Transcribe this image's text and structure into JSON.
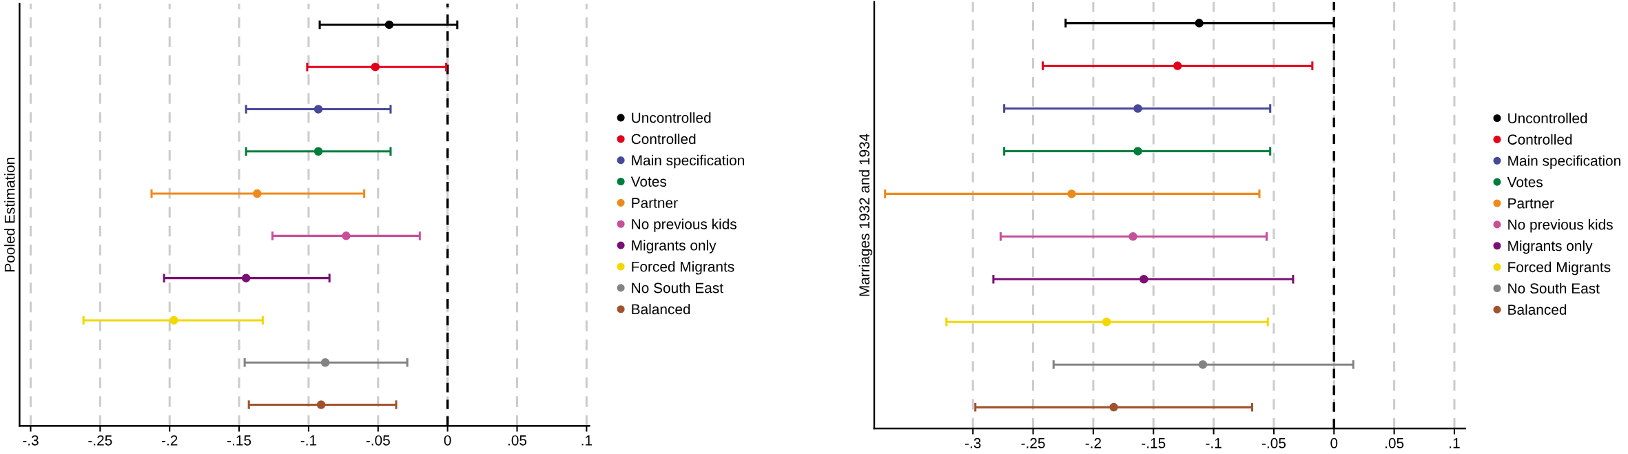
{
  "chart_data": [
    {
      "type": "scatter",
      "orientation": "horizontal",
      "ylabel": "Pooled Estimation",
      "categories": [
        null,
        null,
        null,
        null,
        null,
        null,
        null,
        null,
        null,
        null
      ],
      "xlim": [
        -0.308,
        0.102
      ],
      "xticks": [
        {
          "value": -0.3,
          "label": "-.3"
        },
        {
          "value": -0.25,
          "label": "-.25"
        },
        {
          "value": -0.2,
          "label": "-.2"
        },
        {
          "value": -0.15,
          "label": "-.15"
        },
        {
          "value": -0.1,
          "label": "-.1"
        },
        {
          "value": -0.05,
          "label": "-.05"
        },
        0,
        {
          "value": 0.05,
          "label": ".05"
        },
        {
          "value": 0.1,
          "label": ".1"
        }
      ],
      "grid": "x",
      "legend": "right",
      "marker": "circle",
      "ref_lines": [
        {
          "axis": "x",
          "value": 0,
          "color": "#000000",
          "line_style": "dashed"
        }
      ],
      "series": [
        {
          "name": "Uncontrolled",
          "color": "#000000",
          "values": [
            -0.042,
            null,
            null,
            null,
            null,
            null,
            null,
            null,
            null,
            null
          ],
          "errors": [
            [
              -0.092,
              0.007
            ],
            null,
            null,
            null,
            null,
            null,
            null,
            null,
            null,
            null
          ]
        },
        {
          "name": "Controlled",
          "color": "#e3001b",
          "values": [
            null,
            -0.052,
            null,
            null,
            null,
            null,
            null,
            null,
            null,
            null
          ],
          "errors": [
            null,
            [
              -0.101,
              -0.001
            ],
            null,
            null,
            null,
            null,
            null,
            null,
            null,
            null
          ]
        },
        {
          "name": "Main specification",
          "color": "#48479a",
          "values": [
            null,
            null,
            -0.093,
            null,
            null,
            null,
            null,
            null,
            null,
            null
          ],
          "errors": [
            null,
            null,
            [
              -0.145,
              -0.041
            ],
            null,
            null,
            null,
            null,
            null,
            null,
            null
          ]
        },
        {
          "name": "Votes",
          "color": "#007d3c",
          "values": [
            null,
            null,
            null,
            -0.093,
            null,
            null,
            null,
            null,
            null,
            null
          ],
          "errors": [
            null,
            null,
            null,
            [
              -0.145,
              -0.041
            ],
            null,
            null,
            null,
            null,
            null,
            null
          ]
        },
        {
          "name": "Partner",
          "color": "#ee8a1c",
          "values": [
            null,
            null,
            null,
            null,
            -0.137,
            null,
            null,
            null,
            null,
            null
          ],
          "errors": [
            null,
            null,
            null,
            null,
            [
              -0.213,
              -0.06
            ],
            null,
            null,
            null,
            null,
            null
          ]
        },
        {
          "name": "No previous kids",
          "color": "#c7509b",
          "values": [
            null,
            null,
            null,
            null,
            null,
            -0.073,
            null,
            null,
            null,
            null
          ],
          "errors": [
            null,
            null,
            null,
            null,
            null,
            [
              -0.126,
              -0.02
            ],
            null,
            null,
            null,
            null
          ]
        },
        {
          "name": "Migrants only",
          "color": "#7a0f74",
          "values": [
            null,
            null,
            null,
            null,
            null,
            null,
            -0.145,
            null,
            null,
            null
          ],
          "errors": [
            null,
            null,
            null,
            null,
            null,
            null,
            [
              -0.204,
              -0.085
            ],
            null,
            null,
            null
          ]
        },
        {
          "name": "Forced Migrants",
          "color": "#f2d800",
          "values": [
            null,
            null,
            null,
            null,
            null,
            null,
            null,
            -0.197,
            null,
            null
          ],
          "errors": [
            null,
            null,
            null,
            null,
            null,
            null,
            null,
            [
              -0.262,
              -0.133
            ],
            null,
            null
          ]
        },
        {
          "name": "No South East",
          "color": "#838383",
          "values": [
            null,
            null,
            null,
            null,
            null,
            null,
            null,
            null,
            -0.088,
            null
          ],
          "errors": [
            null,
            null,
            null,
            null,
            null,
            null,
            null,
            null,
            [
              -0.146,
              -0.029
            ],
            null
          ]
        },
        {
          "name": "Balanced",
          "color": "#a0522d",
          "values": [
            null,
            null,
            null,
            null,
            null,
            null,
            null,
            null,
            null,
            -0.091
          ],
          "errors": [
            null,
            null,
            null,
            null,
            null,
            null,
            null,
            null,
            null,
            [
              -0.143,
              -0.037
            ]
          ]
        }
      ]
    },
    {
      "type": "scatter",
      "orientation": "horizontal",
      "ylabel": "Marriages 1932 and 1934",
      "categories": [
        null,
        null,
        null,
        null,
        null,
        null,
        null,
        null,
        null,
        null
      ],
      "xlim": [
        -0.382,
        0.109
      ],
      "xticks": [
        {
          "value": -0.3,
          "label": "-.3"
        },
        {
          "value": -0.25,
          "label": "-.25"
        },
        {
          "value": -0.2,
          "label": "-.2"
        },
        {
          "value": -0.15,
          "label": "-.15"
        },
        {
          "value": -0.1,
          "label": "-.1"
        },
        {
          "value": -0.05,
          "label": "-.05"
        },
        0,
        {
          "value": 0.05,
          "label": ".05"
        },
        {
          "value": 0.1,
          "label": ".1"
        }
      ],
      "grid": "x",
      "legend": "right",
      "marker": "circle",
      "ref_lines": [
        {
          "axis": "x",
          "value": 0,
          "color": "#000000",
          "line_style": "dashed"
        }
      ],
      "series": [
        {
          "name": "Uncontrolled",
          "color": "#000000",
          "values": [
            -0.112,
            null,
            null,
            null,
            null,
            null,
            null,
            null,
            null,
            null
          ],
          "errors": [
            [
              -0.223,
              0.0
            ],
            null,
            null,
            null,
            null,
            null,
            null,
            null,
            null,
            null
          ]
        },
        {
          "name": "Controlled",
          "color": "#e3001b",
          "values": [
            null,
            -0.13,
            null,
            null,
            null,
            null,
            null,
            null,
            null,
            null
          ],
          "errors": [
            null,
            [
              -0.242,
              -0.018
            ],
            null,
            null,
            null,
            null,
            null,
            null,
            null,
            null
          ]
        },
        {
          "name": "Main specification",
          "color": "#48479a",
          "values": [
            null,
            null,
            -0.163,
            null,
            null,
            null,
            null,
            null,
            null,
            null
          ],
          "errors": [
            null,
            null,
            [
              -0.274,
              -0.053
            ],
            null,
            null,
            null,
            null,
            null,
            null,
            null
          ]
        },
        {
          "name": "Votes",
          "color": "#007d3c",
          "values": [
            null,
            null,
            null,
            -0.163,
            null,
            null,
            null,
            null,
            null,
            null
          ],
          "errors": [
            null,
            null,
            null,
            [
              -0.274,
              -0.053
            ],
            null,
            null,
            null,
            null,
            null,
            null
          ]
        },
        {
          "name": "Partner",
          "color": "#ee8a1c",
          "values": [
            null,
            null,
            null,
            null,
            -0.218,
            null,
            null,
            null,
            null,
            null
          ],
          "errors": [
            null,
            null,
            null,
            null,
            [
              -0.373,
              -0.062
            ],
            null,
            null,
            null,
            null,
            null
          ]
        },
        {
          "name": "No previous kids",
          "color": "#c7509b",
          "values": [
            null,
            null,
            null,
            null,
            null,
            -0.167,
            null,
            null,
            null,
            null
          ],
          "errors": [
            null,
            null,
            null,
            null,
            null,
            [
              -0.277,
              -0.056
            ],
            null,
            null,
            null,
            null
          ]
        },
        {
          "name": "Migrants only",
          "color": "#7a0f74",
          "values": [
            null,
            null,
            null,
            null,
            null,
            null,
            -0.158,
            null,
            null,
            null
          ],
          "errors": [
            null,
            null,
            null,
            null,
            null,
            null,
            [
              -0.283,
              -0.034
            ],
            null,
            null,
            null
          ]
        },
        {
          "name": "Forced Migrants",
          "color": "#f2d800",
          "values": [
            null,
            null,
            null,
            null,
            null,
            null,
            null,
            -0.189,
            null,
            null
          ],
          "errors": [
            null,
            null,
            null,
            null,
            null,
            null,
            null,
            [
              -0.322,
              -0.055
            ],
            null,
            null
          ]
        },
        {
          "name": "No South East",
          "color": "#838383",
          "values": [
            null,
            null,
            null,
            null,
            null,
            null,
            null,
            null,
            -0.109,
            null
          ],
          "errors": [
            null,
            null,
            null,
            null,
            null,
            null,
            null,
            null,
            [
              -0.233,
              0.016
            ],
            null
          ]
        },
        {
          "name": "Balanced",
          "color": "#a0522d",
          "values": [
            null,
            null,
            null,
            null,
            null,
            null,
            null,
            null,
            null,
            -0.183
          ],
          "errors": [
            null,
            null,
            null,
            null,
            null,
            null,
            null,
            null,
            null,
            [
              -0.298,
              -0.068
            ]
          ]
        }
      ]
    }
  ]
}
